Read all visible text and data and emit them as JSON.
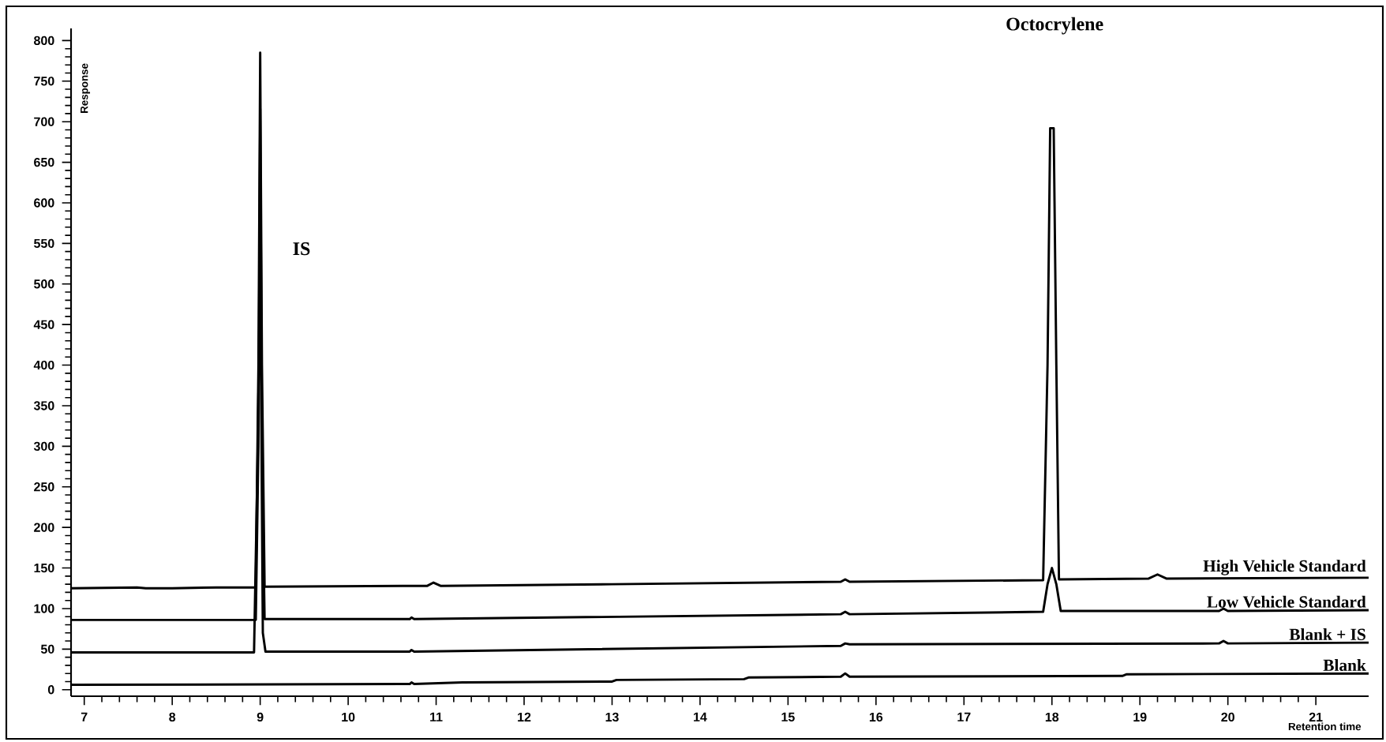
{
  "chart_data": {
    "type": "line",
    "xlabel": "Retention time",
    "ylabel": "Response",
    "xlim": [
      6.85,
      21.6
    ],
    "ylim": [
      -8,
      815
    ],
    "xticks": [
      7,
      8,
      9,
      10,
      11,
      12,
      13,
      14,
      15,
      16,
      17,
      18,
      19,
      20,
      21
    ],
    "yticks": [
      0,
      50,
      100,
      150,
      200,
      250,
      300,
      350,
      400,
      450,
      500,
      550,
      600,
      650,
      700,
      750,
      800
    ],
    "grid": false,
    "legend": false,
    "marker": "none",
    "line_style": "solid",
    "annotations": [
      "IS",
      "Octocrylene"
    ],
    "series": [
      {
        "name": "High Vehicle Standard",
        "color": "#000000",
        "x": [
          6.85,
          7.6,
          7.7,
          8.0,
          8.5,
          8.8,
          8.95,
          8.98,
          9.0,
          9.02,
          9.05,
          10.9,
          10.97,
          11.05,
          13,
          15.6,
          15.65,
          15.7,
          17.9,
          17.95,
          17.98,
          18.02,
          18.05,
          18.08,
          19.1,
          19.2,
          19.3,
          21.6
        ],
        "values": [
          125,
          126,
          125,
          125,
          126,
          126,
          126,
          400,
          785,
          400,
          127,
          128,
          132,
          128,
          130,
          133,
          136,
          133,
          135,
          400,
          692,
          692,
          400,
          136,
          137,
          142,
          137,
          138
        ]
      },
      {
        "name": "Low Vehicle Standard",
        "color": "#000000",
        "x": [
          6.85,
          8.95,
          8.98,
          9.0,
          9.02,
          9.05,
          10.7,
          10.72,
          10.75,
          15.6,
          15.65,
          15.7,
          17.9,
          17.95,
          18.0,
          18.05,
          18.1,
          19.9,
          19.95,
          20.0,
          21.6
        ],
        "values": [
          86,
          86,
          300,
          716,
          300,
          87,
          87,
          89,
          87,
          93,
          96,
          93,
          96,
          130,
          150,
          130,
          97,
          97,
          100,
          97,
          98
        ]
      },
      {
        "name": "Blank + IS",
        "color": "#000000",
        "x": [
          6.85,
          8.93,
          8.97,
          9.0,
          9.03,
          9.06,
          10.7,
          10.72,
          10.75,
          15.6,
          15.65,
          15.7,
          19.9,
          19.95,
          20.0,
          21.6
        ],
        "values": [
          46,
          46,
          281,
          531,
          70,
          47,
          47,
          49,
          47,
          54,
          57,
          56,
          57,
          60,
          57,
          58
        ]
      },
      {
        "name": "Blank",
        "color": "#000000",
        "x": [
          6.85,
          10.7,
          10.72,
          10.75,
          11.3,
          13.0,
          13.05,
          14.5,
          14.55,
          15.6,
          15.65,
          15.7,
          18.8,
          18.85,
          21.6
        ],
        "values": [
          6,
          7,
          9,
          7,
          9,
          10,
          12,
          13,
          15,
          16,
          20,
          16,
          17,
          19,
          20
        ]
      }
    ]
  }
}
